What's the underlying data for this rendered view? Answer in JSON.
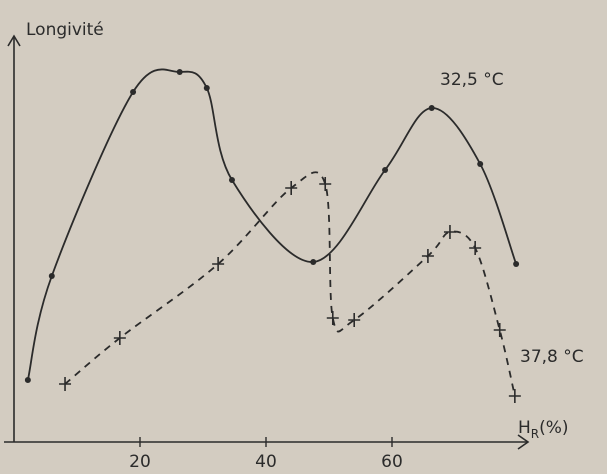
{
  "chart_data": {
    "type": "line",
    "y_label": "Longivité",
    "x_label": {
      "main": "H",
      "sub": "R",
      "unit": "(%)"
    },
    "xlim": [
      0,
      82
    ],
    "xticks": [
      20,
      40,
      60
    ],
    "ylim": [
      0,
      100
    ],
    "series": [
      {
        "name": "32,5 °C",
        "color": "#2b2b2b",
        "dash": false,
        "marker": "dot",
        "x": [
          2.2,
          6,
          18.9,
          26.3,
          30.6,
          34.6,
          47.5,
          58.9,
          66.3,
          74,
          79.7
        ],
        "values": [
          15,
          41,
          87,
          92,
          88,
          65,
          44.5,
          67.5,
          83,
          69,
          44
        ]
      },
      {
        "name": "37,8 °C",
        "color": "#2b2b2b",
        "dash": true,
        "marker": "plus",
        "x": [
          8.1,
          16.8,
          32.4,
          44,
          49.4,
          50.6,
          54,
          65.7,
          69.2,
          73.2,
          77.1,
          79.5
        ],
        "values": [
          14,
          25.5,
          44,
          63,
          64,
          30.5,
          30,
          46,
          52,
          48,
          27.5,
          11
        ]
      }
    ]
  }
}
